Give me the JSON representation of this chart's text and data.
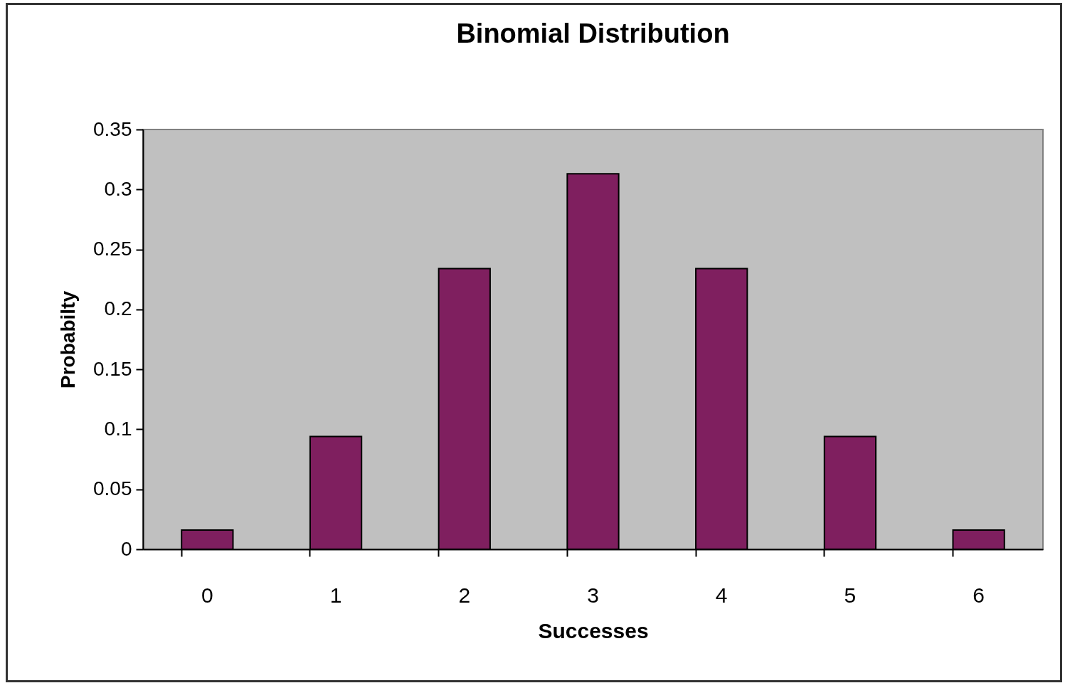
{
  "chart_data": {
    "type": "bar",
    "title": "Binomial Distribution",
    "xlabel": "Successes",
    "ylabel": "Probabilty",
    "categories": [
      "0",
      "1",
      "2",
      "3",
      "4",
      "5",
      "6"
    ],
    "values": [
      0.016,
      0.094,
      0.234,
      0.313,
      0.234,
      0.094,
      0.016
    ],
    "color": "#7f1f5f",
    "ylim": [
      0,
      0.35
    ],
    "yticks": [
      0,
      0.05,
      0.1,
      0.15,
      0.2,
      0.25,
      0.3,
      0.35
    ]
  }
}
